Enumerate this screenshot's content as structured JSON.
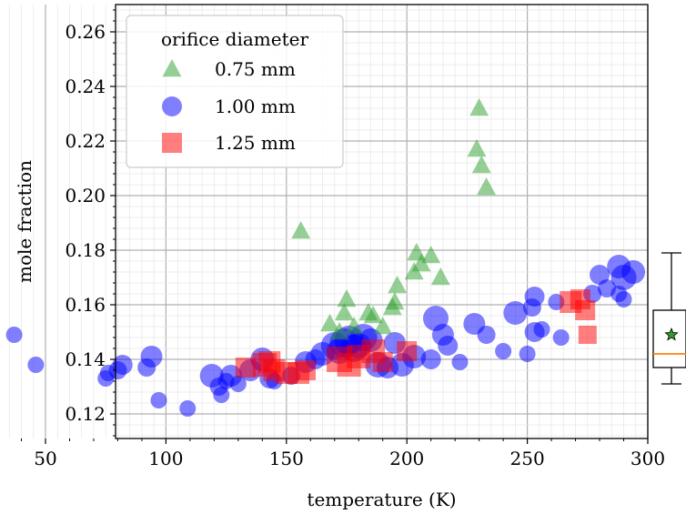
{
  "chart_data": {
    "type": "scatter",
    "xlabel": "temperature (K)",
    "ylabel": "mole fraction",
    "xlim": [
      30,
      300
    ],
    "ylim": [
      0.112,
      0.27
    ],
    "grid": true,
    "legend": {
      "title": "orifice diameter",
      "placement": "top-left"
    },
    "x_ticks": [
      "50",
      "100",
      "150",
      "200",
      "250",
      "300"
    ],
    "y_ticks": [
      "0.12",
      "0.14",
      "0.16",
      "0.18",
      "0.20",
      "0.22",
      "0.24",
      "0.26"
    ],
    "series": [
      {
        "name": "0.75 mm",
        "marker": "triangle",
        "color": "#2ca02c",
        "points": [
          [
            156,
            0.187
          ],
          [
            230,
            0.232
          ],
          [
            229,
            0.217
          ],
          [
            231,
            0.211
          ],
          [
            233,
            0.203
          ],
          [
            204,
            0.179
          ],
          [
            210,
            0.178
          ],
          [
            206,
            0.175
          ],
          [
            214,
            0.17
          ],
          [
            203,
            0.172
          ],
          [
            196,
            0.167
          ],
          [
            195,
            0.161
          ],
          [
            194,
            0.159
          ],
          [
            175,
            0.162
          ],
          [
            174,
            0.157
          ],
          [
            168,
            0.153
          ],
          [
            172,
            0.15
          ],
          [
            184,
            0.157
          ],
          [
            186,
            0.156
          ],
          [
            178,
            0.152
          ],
          [
            190,
            0.152
          ]
        ]
      },
      {
        "name": "1.00 mm",
        "marker": "circle",
        "color": "#0000ff",
        "points": [
          [
            37,
            0.149,
            9
          ],
          [
            46,
            0.138,
            9
          ],
          [
            75,
            0.133,
            9
          ],
          [
            76,
            0.135,
            9
          ],
          [
            80,
            0.136,
            10
          ],
          [
            82,
            0.138,
            11
          ],
          [
            92,
            0.137,
            10
          ],
          [
            94,
            0.141,
            12
          ],
          [
            97,
            0.125,
            9
          ],
          [
            109,
            0.122,
            9
          ],
          [
            119,
            0.134,
            13
          ],
          [
            122,
            0.13,
            10
          ],
          [
            123,
            0.127,
            9
          ],
          [
            125,
            0.132,
            9
          ],
          [
            127,
            0.134,
            12
          ],
          [
            130,
            0.131,
            9
          ],
          [
            135,
            0.136,
            12
          ],
          [
            140,
            0.14,
            13
          ],
          [
            143,
            0.133,
            11
          ],
          [
            145,
            0.132,
            9
          ],
          [
            152,
            0.134,
            10
          ],
          [
            158,
            0.139,
            12
          ],
          [
            162,
            0.14,
            11
          ],
          [
            165,
            0.142,
            13
          ],
          [
            170,
            0.145,
            15
          ],
          [
            172,
            0.143,
            14
          ],
          [
            174,
            0.146,
            16
          ],
          [
            176,
            0.147,
            16
          ],
          [
            178,
            0.144,
            15
          ],
          [
            180,
            0.145,
            14
          ],
          [
            182,
            0.148,
            15
          ],
          [
            185,
            0.147,
            13
          ],
          [
            188,
            0.138,
            14
          ],
          [
            192,
            0.137,
            12
          ],
          [
            195,
            0.146,
            12
          ],
          [
            198,
            0.138,
            13
          ],
          [
            203,
            0.141,
            13
          ],
          [
            210,
            0.14,
            11
          ],
          [
            212,
            0.155,
            14
          ],
          [
            215,
            0.149,
            12
          ],
          [
            217,
            0.145,
            11
          ],
          [
            222,
            0.139,
            9
          ],
          [
            228,
            0.153,
            12
          ],
          [
            233,
            0.149,
            10
          ],
          [
            240,
            0.143,
            9
          ],
          [
            245,
            0.157,
            13
          ],
          [
            250,
            0.142,
            9
          ],
          [
            252,
            0.159,
            10
          ],
          [
            253,
            0.163,
            11
          ],
          [
            253,
            0.15,
            11
          ],
          [
            256,
            0.151,
            9
          ],
          [
            262,
            0.161,
            9
          ],
          [
            264,
            0.148,
            9
          ],
          [
            280,
            0.171,
            11
          ],
          [
            283,
            0.166,
            10
          ],
          [
            288,
            0.174,
            13
          ],
          [
            290,
            0.17,
            14
          ],
          [
            294,
            0.172,
            13
          ],
          [
            288,
            0.164,
            9
          ],
          [
            290,
            0.162,
            9
          ],
          [
            277,
            0.164,
            10
          ]
        ]
      },
      {
        "name": "1.25 mm",
        "marker": "square",
        "color": "#ff0000",
        "points": [
          [
            133,
            0.137,
            11
          ],
          [
            141,
            0.138,
            13
          ],
          [
            143,
            0.139,
            12
          ],
          [
            145,
            0.136,
            12
          ],
          [
            150,
            0.135,
            12
          ],
          [
            155,
            0.135,
            12
          ],
          [
            158,
            0.136,
            11
          ],
          [
            172,
            0.14,
            14
          ],
          [
            176,
            0.138,
            13
          ],
          [
            180,
            0.141,
            13
          ],
          [
            186,
            0.143,
            13
          ],
          [
            190,
            0.139,
            11
          ],
          [
            200,
            0.143,
            11
          ],
          [
            268,
            0.161,
            12
          ],
          [
            272,
            0.162,
            11
          ],
          [
            274,
            0.158,
            11
          ],
          [
            275,
            0.149,
            10
          ]
        ]
      }
    ],
    "boxplot": {
      "whisker_low": 0.131,
      "q1": 0.137,
      "median": 0.142,
      "q3": 0.158,
      "whisker_high": 0.179,
      "mean": 0.149,
      "median_color": "#ff7f0e",
      "mean_marker_color": "#2ca02c"
    }
  }
}
